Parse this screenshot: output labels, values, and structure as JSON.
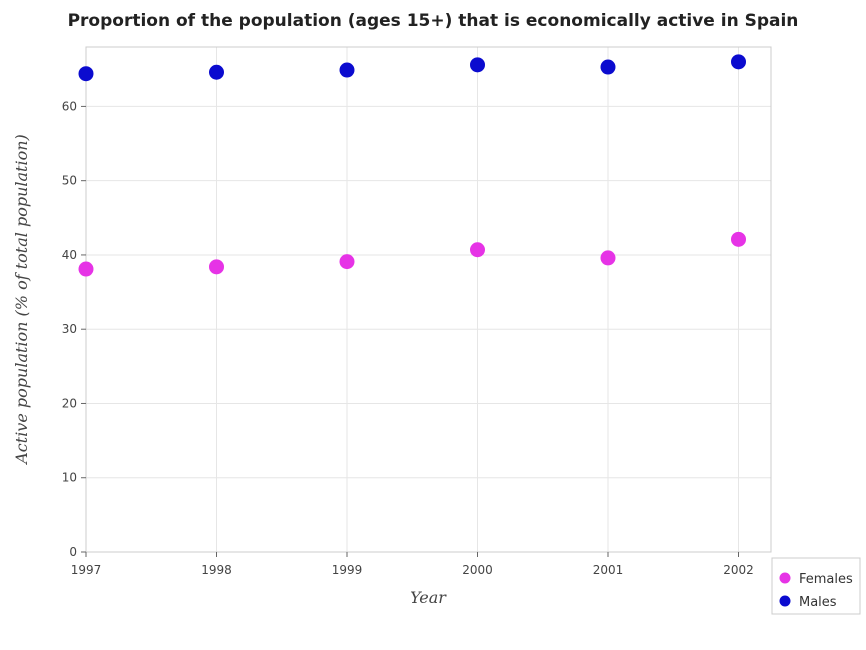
{
  "chart_data": {
    "type": "scatter",
    "title": "Proportion of the population (ages 15+) that is economically active in Spain",
    "xlabel": "Year",
    "ylabel": "Active population (% of total population)",
    "categories": [
      "1997",
      "1998",
      "1999",
      "2000",
      "2001",
      "2002"
    ],
    "ylim": [
      0,
      68
    ],
    "yticks": [
      0,
      10,
      20,
      30,
      40,
      50,
      60
    ],
    "grid": true,
    "legend_position": "bottom-right",
    "series": [
      {
        "name": "Females",
        "color": "#e633e6",
        "values": [
          38.1,
          38.4,
          39.1,
          40.7,
          39.6,
          42.1
        ]
      },
      {
        "name": "Males",
        "color": "#0b0bcf",
        "values": [
          64.4,
          64.6,
          64.9,
          65.6,
          65.3,
          66.0
        ]
      }
    ]
  }
}
